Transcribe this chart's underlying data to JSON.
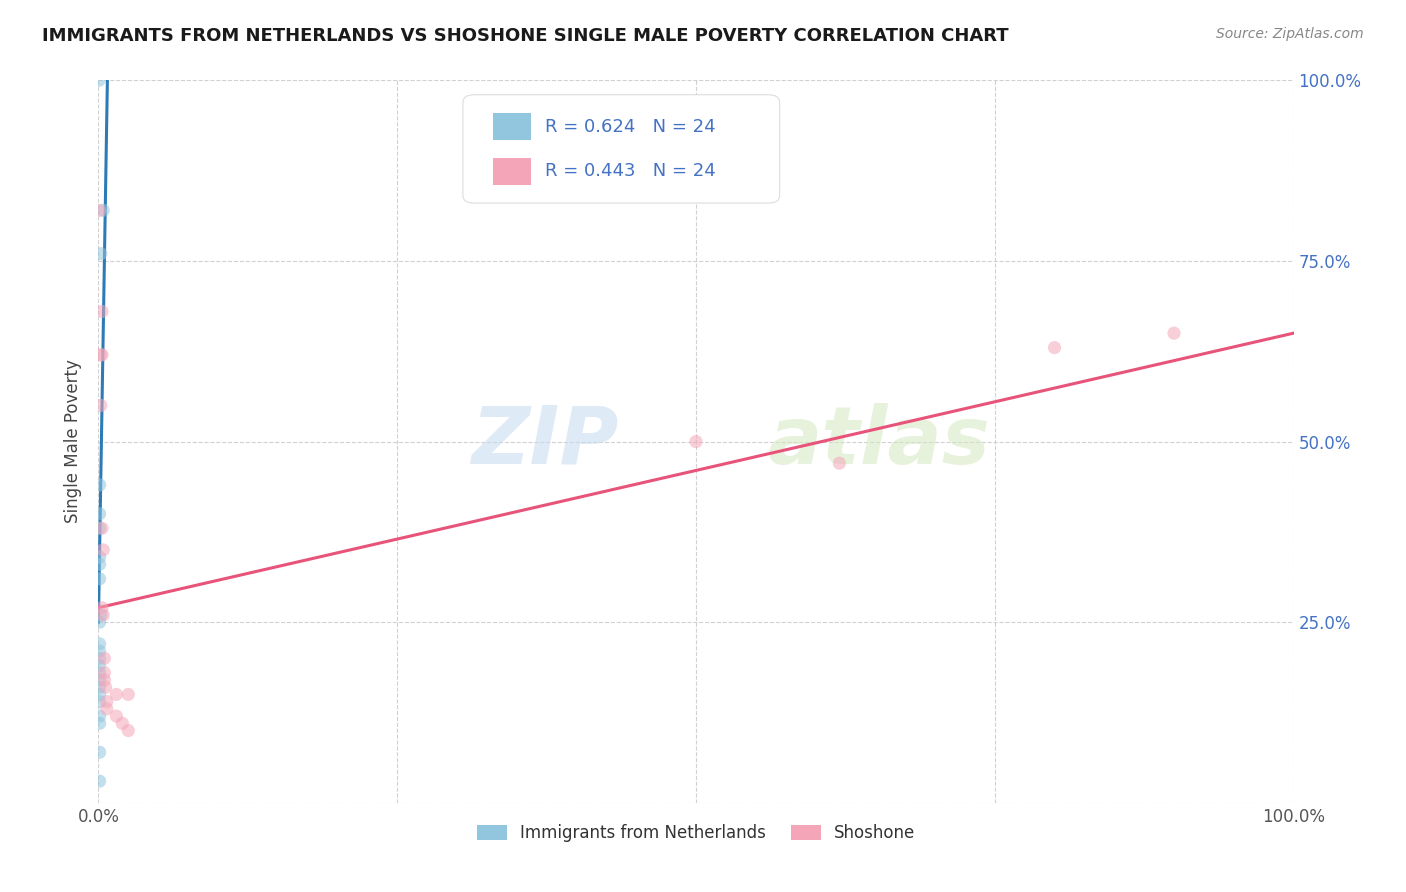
{
  "title": "IMMIGRANTS FROM NETHERLANDS VS SHOSHONE SINGLE MALE POVERTY CORRELATION CHART",
  "source": "Source: ZipAtlas.com",
  "ylabel": "Single Male Poverty",
  "legend_blue_R": "R = 0.624",
  "legend_blue_N": "N = 24",
  "legend_pink_R": "R = 0.443",
  "legend_pink_N": "N = 24",
  "legend_label_blue": "Immigrants from Netherlands",
  "legend_label_pink": "Shoshone",
  "blue_scatter_x": [
    0.0005,
    0.004,
    0.002,
    0.001,
    0.001,
    0.001,
    0.001,
    0.001,
    0.001,
    0.002,
    0.001,
    0.001,
    0.001,
    0.001,
    0.001,
    0.001,
    0.001,
    0.001,
    0.001,
    0.001,
    0.001,
    0.001,
    0.001,
    0.001
  ],
  "blue_scatter_y": [
    1.0,
    0.82,
    0.76,
    0.44,
    0.4,
    0.38,
    0.34,
    0.33,
    0.31,
    0.26,
    0.25,
    0.22,
    0.21,
    0.2,
    0.19,
    0.18,
    0.17,
    0.16,
    0.15,
    0.14,
    0.12,
    0.11,
    0.07,
    0.03
  ],
  "pink_scatter_x": [
    0.001,
    0.003,
    0.002,
    0.002,
    0.003,
    0.003,
    0.003,
    0.004,
    0.004,
    0.005,
    0.005,
    0.005,
    0.006,
    0.007,
    0.007,
    0.015,
    0.015,
    0.02,
    0.025,
    0.025,
    0.5,
    0.62,
    0.8,
    0.9
  ],
  "pink_scatter_y": [
    0.82,
    0.68,
    0.62,
    0.55,
    0.38,
    0.27,
    0.62,
    0.35,
    0.26,
    0.2,
    0.18,
    0.17,
    0.16,
    0.13,
    0.14,
    0.15,
    0.12,
    0.11,
    0.1,
    0.15,
    0.5,
    0.47,
    0.63,
    0.65
  ],
  "blue_line_x": [
    0.0,
    0.008
  ],
  "blue_line_y": [
    0.25,
    1.05
  ],
  "pink_line_x": [
    0.0,
    1.0
  ],
  "pink_line_y": [
    0.27,
    0.65
  ],
  "watermark_zip": "ZIP",
  "watermark_atlas": "atlas",
  "background_color": "#ffffff",
  "scatter_alpha": 0.55,
  "scatter_size": 90,
  "blue_color": "#92c5de",
  "pink_color": "#f4a6b8",
  "blue_line_color": "#2c7bb6",
  "pink_line_color": "#e8537a",
  "grid_color": "#cccccc",
  "xlim": [
    0.0,
    1.0
  ],
  "ylim": [
    0.0,
    1.0
  ],
  "xtick_positions": [
    0.0,
    0.25,
    0.5,
    0.75,
    1.0
  ],
  "xtick_labels": [
    "0.0%",
    "",
    "",
    "",
    "100.0%"
  ],
  "ytick_positions": [
    0.0,
    0.25,
    0.5,
    0.75,
    1.0
  ],
  "right_ytick_labels": [
    "",
    "25.0%",
    "50.0%",
    "75.0%",
    "100.0%"
  ],
  "title_fontsize": 13,
  "source_fontsize": 10,
  "tick_fontsize": 12,
  "right_tick_color": "#4472c4"
}
